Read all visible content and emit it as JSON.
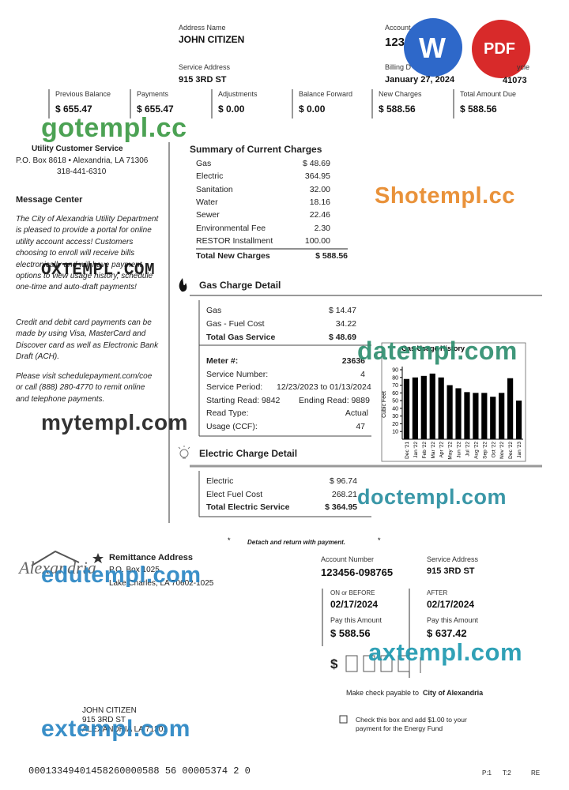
{
  "header": {
    "address_name_label": "Address Name",
    "address_name": "JOHN CITIZEN",
    "service_address_label": "Service Address",
    "service_address": "915 3RD ST",
    "account_label": "Account",
    "account_number": "123",
    "billing_date_label": "Billing D",
    "billing_date": "January 27, 2024",
    "cycle_label": "ycle",
    "cycle": "41073"
  },
  "badges": {
    "word": "W",
    "pdf": "PDF"
  },
  "balances": [
    {
      "label": "Previous Balance",
      "value": "$ 655.47"
    },
    {
      "label": "Payments",
      "value": "$ 655.47"
    },
    {
      "label": "Adjustments",
      "value": "$  0.00"
    },
    {
      "label": "Balance Forward",
      "value": "$ 0.00"
    },
    {
      "label": "New Charges",
      "value": "$ 588.56"
    },
    {
      "label": "Total Amount Due",
      "value": "$ 588.56"
    }
  ],
  "customer_service": {
    "title": "Utility Customer Service",
    "address": "P.O. Box 8618 • Alexandria, LA 71306",
    "phone": "318-441-6310"
  },
  "message_center": {
    "title": "Message Center",
    "paragraphs": [
      "The City of Alexandria Utility Department is pleased to provide a portal for online utility account access! Customers choosing to enroll will receive bills electronically and will have payment options to view usage history, schedule one-time and auto-draft payments!",
      "Credit and debit card payments can be made by using Visa, MasterCard and Discover card as well as Electronic Bank Draft (ACH).",
      "Please visit schedulepayment.com/coe or call (888) 280-4770 to remit online and telephone payments."
    ]
  },
  "current_charges": {
    "title": "Summary of Current Charges",
    "rows": [
      {
        "label": "Gas",
        "amount": "$ 48.69"
      },
      {
        "label": "Electric",
        "amount": "364.95"
      },
      {
        "label": "Sanitation",
        "amount": "32.00"
      },
      {
        "label": "Water",
        "amount": "18.16"
      },
      {
        "label": "Sewer",
        "amount": "22.46"
      },
      {
        "label": "Environmental Fee",
        "amount": "2.30"
      },
      {
        "label": "RESTOR Installment",
        "amount": "100.00"
      }
    ],
    "total": {
      "label": "Total New Charges",
      "amount": "$ 588.56"
    }
  },
  "gas_detail": {
    "title": "Gas Charge Detail",
    "rows": [
      {
        "label": "Gas",
        "amount": "$ 14.47"
      },
      {
        "label": "Gas - Fuel Cost",
        "amount": "34.22"
      }
    ],
    "total": {
      "label": "Total Gas Service",
      "amount": "$ 48.69"
    },
    "meter": [
      {
        "label": "Meter #:",
        "value": "23636"
      },
      {
        "label": "Service Number:",
        "value": "4"
      },
      {
        "label": "Service Period:",
        "value": "12/23/2023 to 01/13/2024"
      },
      {
        "label": "Starting Read: 9842",
        "value": "Ending Read: 9889"
      },
      {
        "label": "Read Type:",
        "value": "Actual"
      },
      {
        "label": "Usage (CCF):",
        "value": "47"
      }
    ]
  },
  "usage_chart": {
    "type": "bar",
    "title": "Gas Usage History",
    "y_label": "Cubic Feet",
    "categories": [
      "Dec '21",
      "Jan '22",
      "Feb '22",
      "Mar '22",
      "Apr '22",
      "May '22",
      "Jun '22",
      "Jul '22",
      "Aug '22",
      "Sep '22",
      "Oct '22",
      "Nov '22",
      "Dec '22",
      "Jan '23"
    ],
    "values": [
      78,
      80,
      82,
      85,
      80,
      70,
      66,
      61,
      60,
      60,
      55,
      60,
      79,
      50
    ],
    "color": "#000000",
    "ylim": [
      0,
      90
    ],
    "yticks": [
      10,
      20,
      30,
      40,
      50,
      60,
      70,
      80,
      90
    ]
  },
  "electric_detail": {
    "title": "Electric Charge Detail",
    "rows": [
      {
        "label": "Electric",
        "amount": "$ 96.74"
      },
      {
        "label": "Elect Fuel Cost",
        "amount": "268.21"
      }
    ],
    "total": {
      "label": "Total Electric Service",
      "amount": "$ 364.95"
    }
  },
  "detach_note": "Detach and return with payment.",
  "remittance": {
    "logo_text": "Alexandria",
    "title": "Remittance Address",
    "address_line1": "P.O. Box 1025",
    "address_line2": "Lake Charles, LA 70602-1025",
    "account_number_label": "Account Number",
    "account_number": "123456-098765",
    "service_address_label": "Service Address",
    "service_address": "915 3RD ST",
    "on_or_before_label": "ON or BEFORE",
    "on_or_before_date": "02/17/2024",
    "after_label": "AFTER",
    "after_date": "02/17/2024",
    "pay_label_before": "Pay this Amount",
    "pay_amount_before": "$ 588.56",
    "pay_label_after": "Pay this Amount",
    "pay_amount_after": "$ 637.42",
    "amount_enclosed_symbol": "$",
    "payable_to_prefix": "Make check payable to",
    "payable_to": "City of Alexandria",
    "energy_fund_line1": "Check this box and add $1.00 to your",
    "energy_fund_line2": "payment for the Energy Fund",
    "customer_name": "JOHN CITIZEN",
    "customer_street": "915 3RD ST",
    "customer_city": "ALEXANDRIA LA 71301"
  },
  "footer": {
    "scanline": "00013349401458260000588 56  00005374 2  0",
    "page": "P:1",
    "total_pages": "T:2",
    "code": "RE"
  },
  "watermarks": [
    "gotempl.cc",
    "Shotempl.cc",
    "OXTEMPL.COM",
    "datempl.com",
    "mytempl.com",
    "doctempl.com",
    "edutempl.com",
    "axtempl.com",
    "extempl.com"
  ]
}
